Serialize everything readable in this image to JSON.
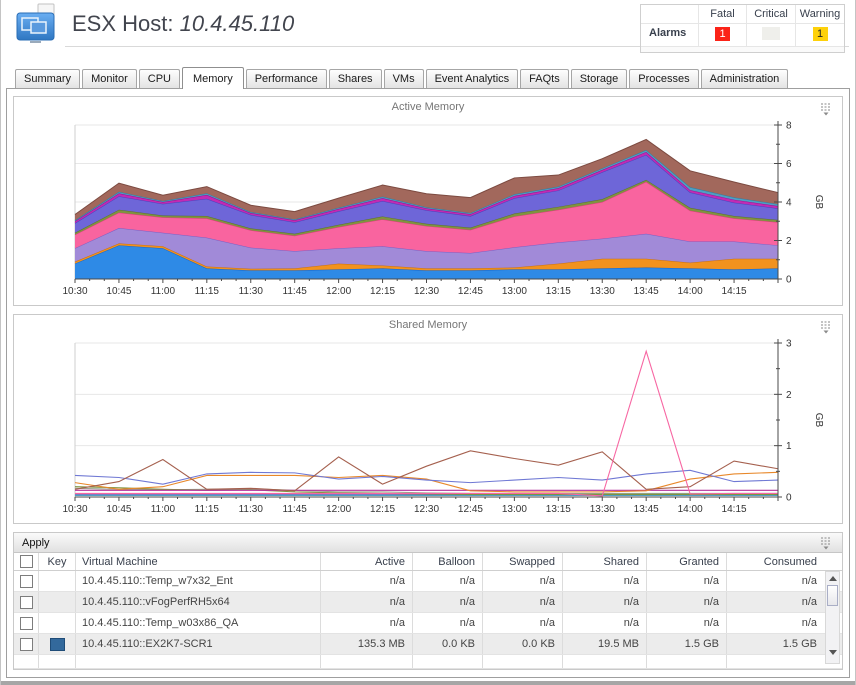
{
  "header": {
    "title_prefix": "ESX Host:",
    "title_value": "10.4.45.110"
  },
  "alarms": {
    "label": "Alarms",
    "columns": [
      "Fatal",
      "Critical",
      "Warning"
    ],
    "counts": {
      "fatal": "1",
      "critical": "",
      "warning": "1"
    },
    "colors": {
      "fatal_bg": "#fb2318",
      "critical_bg": "#efefeb",
      "warning_bg": "#fed10a"
    }
  },
  "tabs": {
    "active": "Memory",
    "items": [
      "Summary",
      "Monitor",
      "CPU",
      "Memory",
      "Performance",
      "Shares",
      "VMs",
      "Event Analytics",
      "FAQts",
      "Storage",
      "Processes",
      "Administration"
    ]
  },
  "icons": {
    "host_icon": "overlapping-monitors",
    "chart_menu_icon": "dashed-list-with-down-arrow",
    "scroll_up_icon": "triangle-up",
    "scroll_down_icon": "triangle-down"
  },
  "chart_data": [
    {
      "type": "area",
      "stacked": true,
      "title": "Active Memory",
      "xlabel": "",
      "ylabel": "GB",
      "ylim": [
        0,
        8
      ],
      "yticks": [
        0,
        2,
        4,
        6,
        8
      ],
      "yminor": 1,
      "grid": true,
      "legend": "none",
      "x": [
        "10:30",
        "10:45",
        "11:00",
        "11:15",
        "11:30",
        "11:45",
        "12:00",
        "12:15",
        "12:30",
        "12:45",
        "13:00",
        "13:15",
        "13:30",
        "13:45",
        "14:00",
        "14:15",
        ""
      ],
      "series": [
        {
          "name": "vm-blue",
          "color": "#2e8ae6",
          "stroke": "#1563c8",
          "values": [
            0.8,
            1.75,
            1.6,
            0.55,
            0.45,
            0.45,
            0.5,
            0.55,
            0.45,
            0.45,
            0.5,
            0.5,
            0.55,
            0.6,
            0.55,
            0.5,
            0.55
          ]
        },
        {
          "name": "vm-orange",
          "color": "#f2921e",
          "stroke": "#c9700e",
          "values": [
            0.1,
            0.1,
            0.1,
            0.1,
            0.08,
            0.1,
            0.3,
            0.15,
            0.1,
            0.1,
            0.1,
            0.3,
            0.5,
            0.45,
            0.3,
            0.55,
            0.5
          ]
        },
        {
          "name": "vm-purple",
          "color": "#a18ad8",
          "stroke": "#7a5ec4",
          "values": [
            0.7,
            0.8,
            0.7,
            1.5,
            1.1,
            0.9,
            0.8,
            1.0,
            0.9,
            0.8,
            1.05,
            1.1,
            1.05,
            1.3,
            1.1,
            0.9,
            0.7
          ]
        },
        {
          "name": "vm-pink",
          "color": "#f9649f",
          "stroke": "#e23a7f",
          "values": [
            0.7,
            0.8,
            0.8,
            1.0,
            0.9,
            0.8,
            1.1,
            1.4,
            1.3,
            1.2,
            1.6,
            1.7,
            1.9,
            2.7,
            1.6,
            1.2,
            1.2
          ]
        },
        {
          "name": "vm-olive",
          "color": "#7f9340",
          "stroke": "#5e7026",
          "values": [
            0.1,
            0.15,
            0.1,
            0.12,
            0.1,
            0.1,
            0.12,
            0.15,
            0.12,
            0.12,
            0.15,
            0.15,
            0.15,
            0.1,
            0.15,
            0.12,
            0.12
          ]
        },
        {
          "name": "vm-violet",
          "color": "#6e66d8",
          "stroke": "#4b42bd",
          "values": [
            0.5,
            0.7,
            0.6,
            0.9,
            0.7,
            0.6,
            0.7,
            0.8,
            0.7,
            0.6,
            0.8,
            0.85,
            1.4,
            1.3,
            0.8,
            0.7,
            0.6
          ]
        },
        {
          "name": "vm-magenta",
          "color": "#c12bb4",
          "stroke": "#970e8c",
          "values": [
            0.1,
            0.15,
            0.1,
            0.2,
            0.1,
            0.1,
            0.12,
            0.15,
            0.1,
            0.1,
            0.12,
            0.12,
            0.12,
            0.15,
            0.12,
            0.15,
            0.12
          ]
        },
        {
          "name": "vm-teal",
          "color": "#4e9fc4",
          "stroke": "#2e7ea4",
          "values": [
            0.05,
            0.08,
            0.05,
            0.08,
            0.05,
            0.05,
            0.06,
            0.08,
            0.06,
            0.06,
            0.08,
            0.08,
            0.08,
            0.1,
            0.15,
            0.12,
            0.1
          ]
        },
        {
          "name": "vm-brown",
          "color": "#a2685c",
          "stroke": "#7c4a40",
          "values": [
            0.3,
            0.45,
            0.3,
            0.35,
            0.35,
            0.4,
            0.5,
            0.6,
            0.7,
            0.8,
            0.85,
            0.6,
            0.5,
            0.55,
            0.85,
            0.8,
            0.6
          ]
        }
      ]
    },
    {
      "type": "line",
      "stacked": false,
      "title": "Shared Memory",
      "xlabel": "",
      "ylabel": "GB",
      "ylim": [
        0,
        3
      ],
      "yticks": [
        0,
        1,
        2,
        3
      ],
      "yminor": 0.5,
      "grid": true,
      "legend": "none",
      "x": [
        "10:30",
        "10:45",
        "11:00",
        "11:15",
        "11:30",
        "11:45",
        "12:00",
        "12:15",
        "12:30",
        "12:45",
        "13:00",
        "13:15",
        "13:30",
        "13:45",
        "14:00",
        "14:15",
        ""
      ],
      "series": [
        {
          "name": "vm-gray",
          "color": "#8f97a8",
          "values": [
            0.06,
            0.06,
            0.06,
            0.06,
            0.06,
            0.06,
            0.06,
            0.06,
            0.06,
            0.06,
            0.06,
            0.06,
            0.06,
            0.06,
            0.06,
            0.06,
            0.06
          ]
        },
        {
          "name": "vm-violet",
          "color": "#6e66d8",
          "values": [
            0.04,
            0.04,
            0.04,
            0.04,
            0.04,
            0.04,
            0.04,
            0.04,
            0.04,
            0.04,
            0.04,
            0.04,
            0.04,
            0.04,
            0.04,
            0.04,
            0.04
          ]
        },
        {
          "name": "vm-teal",
          "color": "#4e9fc4",
          "values": [
            0.03,
            0.03,
            0.03,
            0.03,
            0.03,
            0.03,
            0.03,
            0.03,
            0.03,
            0.03,
            0.03,
            0.03,
            0.03,
            0.03,
            0.03,
            0.03,
            0.03
          ]
        },
        {
          "name": "vm-sage",
          "color": "#9aa48c",
          "values": [
            0.17,
            0.15,
            0.14,
            0.15,
            0.16,
            0.13,
            0.1,
            0.1,
            0.08,
            0.07,
            0.07,
            0.07,
            0.07,
            0.07,
            0.07,
            0.07,
            0.07
          ]
        },
        {
          "name": "vm-olive",
          "color": "#7f9340",
          "values": [
            0.2,
            0.18,
            0.15,
            0.13,
            0.14,
            0.1,
            0.08,
            0.07,
            0.06,
            0.05,
            0.05,
            0.05,
            0.05,
            0.05,
            0.05,
            0.05,
            0.05
          ]
        },
        {
          "name": "vm-magenta",
          "color": "#b5309c",
          "values": [
            0.13,
            0.13,
            0.13,
            0.13,
            0.13,
            0.13,
            0.13,
            0.13,
            0.13,
            0.13,
            0.13,
            0.13,
            0.13,
            0.13,
            0.13,
            0.13,
            0.13
          ]
        },
        {
          "name": "vm-orange",
          "color": "#e8882a",
          "values": [
            0.28,
            0.15,
            0.2,
            0.42,
            0.42,
            0.42,
            0.38,
            0.42,
            0.35,
            0.12,
            0.1,
            0.1,
            0.1,
            0.12,
            0.35,
            0.45,
            0.48
          ]
        },
        {
          "name": "vm-blue",
          "color": "#6f78d4",
          "values": [
            0.42,
            0.38,
            0.25,
            0.45,
            0.48,
            0.47,
            0.35,
            0.4,
            0.33,
            0.28,
            0.33,
            0.38,
            0.33,
            0.45,
            0.52,
            0.3,
            0.33
          ]
        },
        {
          "name": "vm-brown",
          "color": "#a5604e",
          "values": [
            0.15,
            0.3,
            0.73,
            0.15,
            0.17,
            0.12,
            0.78,
            0.25,
            0.6,
            0.9,
            0.75,
            0.62,
            0.88,
            0.15,
            0.2,
            0.7,
            0.55
          ]
        },
        {
          "name": "vm-pink",
          "color": "#f766a2",
          "values": [
            0.07,
            0.07,
            0.07,
            0.07,
            0.07,
            0.07,
            0.07,
            0.07,
            0.07,
            0.07,
            0.07,
            0.07,
            0.02,
            2.84,
            0.06,
            0.07,
            0.07
          ]
        }
      ]
    }
  ],
  "table": {
    "apply_label": "Apply",
    "columns": [
      "",
      "Key",
      "Virtual Machine",
      "Active",
      "Balloon",
      "Swapped",
      "Shared",
      "Granted",
      "Consumed"
    ],
    "rows": [
      {
        "vm": "10.4.45.110::Temp_w7x32_Ent",
        "key_color": null,
        "values": [
          "n/a",
          "n/a",
          "n/a",
          "n/a",
          "n/a",
          "n/a"
        ]
      },
      {
        "vm": "10.4.45.110::vFogPerfRH5x64",
        "key_color": null,
        "values": [
          "n/a",
          "n/a",
          "n/a",
          "n/a",
          "n/a",
          "n/a"
        ]
      },
      {
        "vm": "10.4.45.110::Temp_w03x86_QA",
        "key_color": null,
        "values": [
          "n/a",
          "n/a",
          "n/a",
          "n/a",
          "n/a",
          "n/a"
        ]
      },
      {
        "vm": "10.4.45.110::EX2K7-SCR1",
        "key_color": "#33699c",
        "values": [
          "135.3 MB",
          "0.0 KB",
          "0.0 KB",
          "19.5 MB",
          "1.5 GB",
          "1.5 GB"
        ]
      }
    ]
  }
}
